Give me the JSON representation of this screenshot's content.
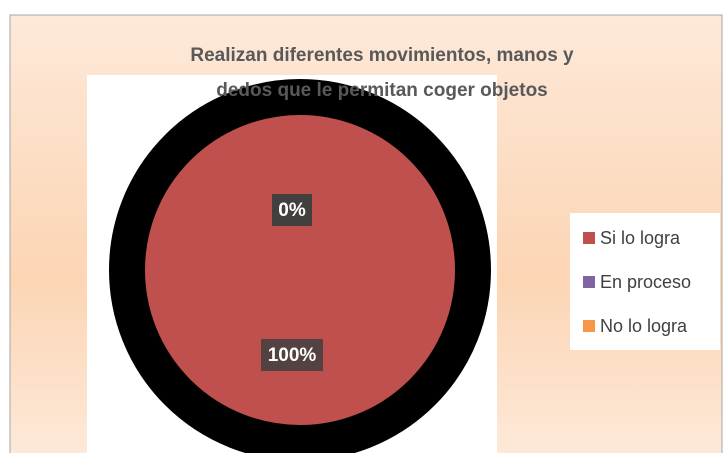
{
  "chart_data": {
    "type": "pie",
    "title": "Realizan diferentes movimientos, manos y dedos que le permitan coger objetos",
    "categories": [
      "Si lo logra",
      "En proceso",
      "No lo logra"
    ],
    "values": [
      100,
      0,
      0
    ],
    "value_labels": [
      "100%",
      "0%",
      "0%"
    ],
    "colors": [
      "#c0504d",
      "#8064a2",
      "#f79646"
    ],
    "legend": "right"
  }
}
